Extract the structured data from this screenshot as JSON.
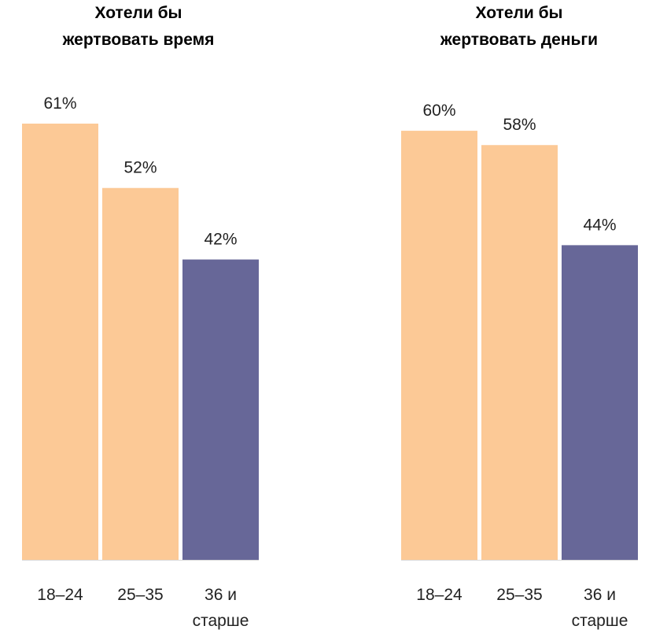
{
  "chart_data": [
    {
      "type": "bar",
      "title": [
        "Хотели бы",
        "жертвовать время"
      ],
      "categories": [
        [
          "18–24"
        ],
        [
          "25–35"
        ],
        [
          "36 и",
          "старше"
        ]
      ],
      "values": [
        61,
        52,
        42
      ],
      "value_labels": [
        "61%",
        "52%",
        "42%"
      ],
      "bar_colors": [
        "#FCC996",
        "#FCC996",
        "#676798"
      ],
      "ylim": [
        0,
        61
      ]
    },
    {
      "type": "bar",
      "title": [
        "Хотели бы",
        "жертвовать деньги"
      ],
      "categories": [
        [
          "18–24"
        ],
        [
          "25–35"
        ],
        [
          "36 и",
          "старше"
        ]
      ],
      "values": [
        60,
        58,
        44
      ],
      "value_labels": [
        "60%",
        "58%",
        "44%"
      ],
      "bar_colors": [
        "#FCC996",
        "#FCC996",
        "#676798"
      ],
      "ylim": [
        0,
        61
      ]
    }
  ]
}
